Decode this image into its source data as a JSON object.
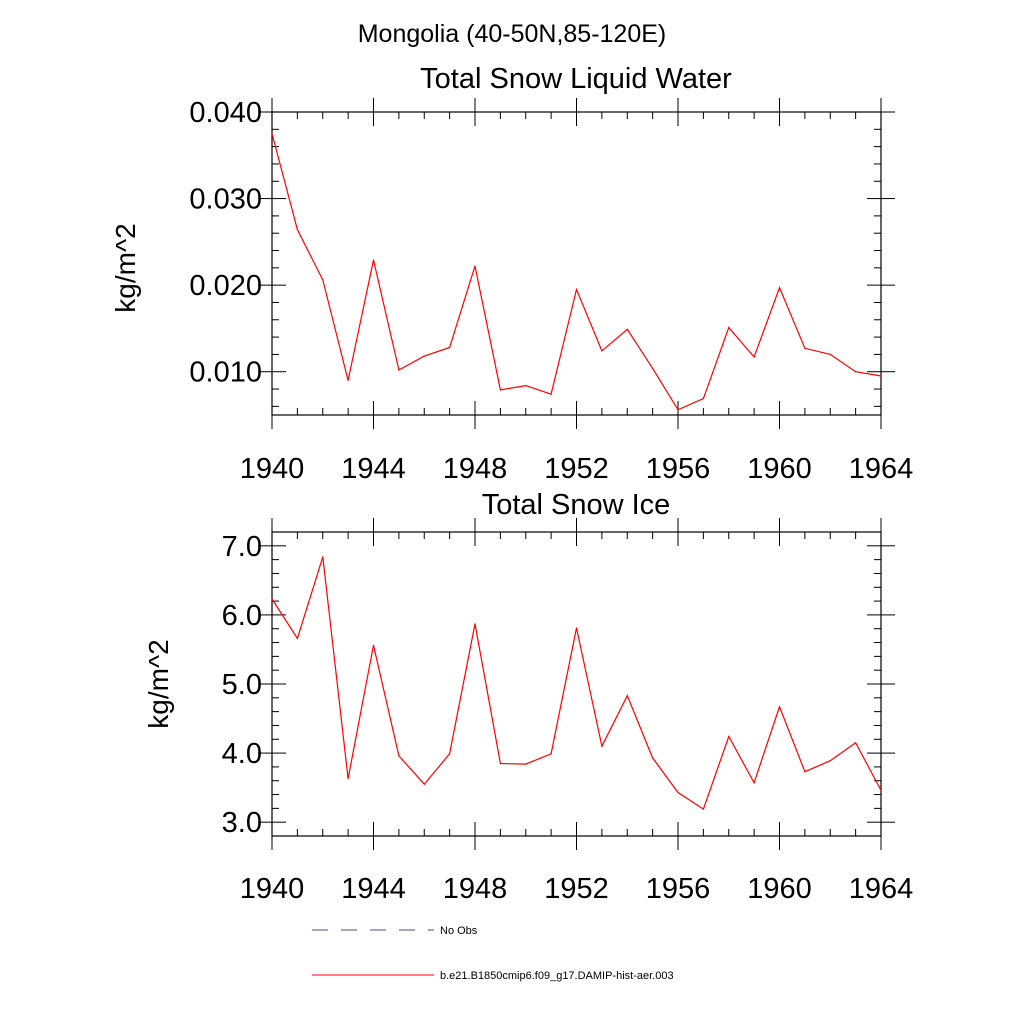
{
  "page_title": "Mongolia (40-50N,85-120E)",
  "legend": {
    "no_obs": "No Obs",
    "model": "b.e21.B1850cmip6.f09_g17.DAMIP-hist-aer.003"
  },
  "colors": {
    "series": "#ff0000",
    "axis": "#000000",
    "no_obs": "#4a4a8a"
  },
  "chart_data": [
    {
      "type": "line",
      "title": "Total Snow Liquid Water",
      "ylabel": "kg/m^2",
      "xlabel": "",
      "xlim": [
        1940,
        1964
      ],
      "ylim": [
        0.005,
        0.04
      ],
      "xticks": [
        1940,
        1944,
        1948,
        1952,
        1956,
        1960,
        1964
      ],
      "yticks": [
        0.01,
        0.02,
        0.03,
        0.04
      ],
      "ytick_labels": [
        "0.010",
        "0.020",
        "0.030",
        "0.040"
      ],
      "grid": false,
      "series": [
        {
          "name": "b.e21.B1850cmip6.f09_g17.DAMIP-hist-aer.003",
          "x": [
            1940,
            1941,
            1942,
            1943,
            1944,
            1945,
            1946,
            1947,
            1948,
            1949,
            1950,
            1951,
            1952,
            1953,
            1954,
            1955,
            1956,
            1957,
            1958,
            1959,
            1960,
            1961,
            1962,
            1963,
            1964
          ],
          "values": [
            0.0375,
            0.0264,
            0.0206,
            0.009,
            0.0229,
            0.0102,
            0.0118,
            0.0128,
            0.0222,
            0.0079,
            0.0084,
            0.0074,
            0.0195,
            0.0124,
            0.0149,
            0.0104,
            0.0056,
            0.0069,
            0.0151,
            0.0117,
            0.0197,
            0.0127,
            0.012,
            0.01,
            0.0095
          ]
        }
      ]
    },
    {
      "type": "line",
      "title": "Total Snow Ice",
      "ylabel": "kg/m^2",
      "xlabel": "",
      "xlim": [
        1940,
        1964
      ],
      "ylim": [
        2.8,
        7.2
      ],
      "xticks": [
        1940,
        1944,
        1948,
        1952,
        1956,
        1960,
        1964
      ],
      "yticks": [
        3.0,
        4.0,
        5.0,
        6.0,
        7.0
      ],
      "ytick_labels": [
        "3.0",
        "4.0",
        "5.0",
        "6.0",
        "7.0"
      ],
      "grid": false,
      "series": [
        {
          "name": "b.e21.B1850cmip6.f09_g17.DAMIP-hist-aer.003",
          "x": [
            1940,
            1941,
            1942,
            1943,
            1944,
            1945,
            1946,
            1947,
            1948,
            1949,
            1950,
            1951,
            1952,
            1953,
            1954,
            1955,
            1956,
            1957,
            1958,
            1959,
            1960,
            1961,
            1962,
            1963,
            1964
          ],
          "values": [
            6.23,
            5.66,
            6.84,
            3.63,
            5.56,
            3.96,
            3.55,
            3.99,
            5.87,
            3.85,
            3.84,
            3.99,
            5.81,
            4.1,
            4.83,
            3.93,
            3.43,
            3.19,
            4.24,
            3.57,
            4.67,
            3.73,
            3.89,
            4.15,
            3.46
          ]
        }
      ]
    }
  ]
}
